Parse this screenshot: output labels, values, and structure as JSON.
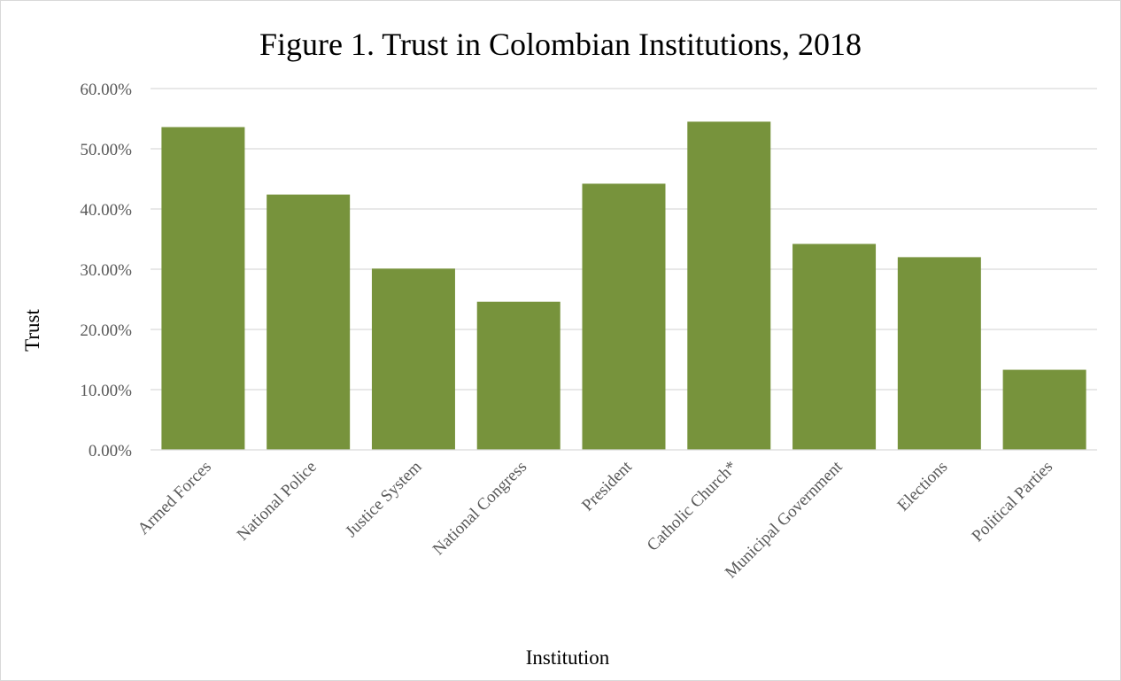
{
  "chart_data": {
    "type": "bar",
    "title": "Figure 1. Trust in Colombian Institutions, 2018",
    "xlabel": "Institution",
    "ylabel": "Trust",
    "categories": [
      "Armed Forces",
      "National Police",
      "Justice System",
      "National Congress",
      "President",
      "Catholic Church*",
      "Municipal Government",
      "Elections",
      "Political Parties"
    ],
    "values": [
      0.536,
      0.424,
      0.301,
      0.246,
      0.442,
      0.545,
      0.342,
      0.32,
      0.133
    ],
    "ylim": [
      0,
      0.6
    ],
    "yticks": [
      0,
      0.1,
      0.2,
      0.3,
      0.4,
      0.5,
      0.6
    ],
    "ytick_labels": [
      "0.00%",
      "10.00%",
      "20.00%",
      "30.00%",
      "40.00%",
      "50.00%",
      "60.00%"
    ],
    "grid": true,
    "legend": "none",
    "colors": {
      "bar": "#77933c",
      "grid": "#d9d9d9",
      "tick_text": "#595959"
    }
  }
}
